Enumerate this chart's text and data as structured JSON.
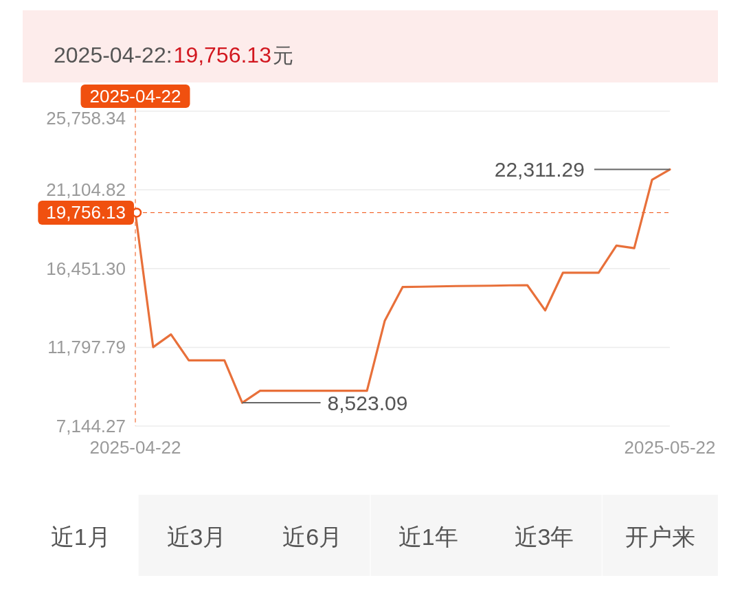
{
  "chart_data": {
    "type": "line",
    "title": "2025-04-22:",
    "subtitle": "19,756.13",
    "x": [
      "2025-04-22",
      "2025-04-23",
      "2025-04-24",
      "2025-04-25",
      "2025-04-26",
      "2025-04-27",
      "2025-04-28",
      "2025-04-29",
      "2025-04-30",
      "2025-05-01",
      "2025-05-02",
      "2025-05-03",
      "2025-05-04",
      "2025-05-05",
      "2025-05-06",
      "2025-05-07",
      "2025-05-08",
      "2025-05-09",
      "2025-05-10",
      "2025-05-11",
      "2025-05-12",
      "2025-05-13",
      "2025-05-14",
      "2025-05-15",
      "2025-05-16",
      "2025-05-17",
      "2025-05-18",
      "2025-05-19",
      "2025-05-20",
      "2025-05-21",
      "2025-05-22"
    ],
    "series": [
      {
        "color": "#e8703a",
        "values": [
          19756.13,
          11810,
          12560,
          11030,
          11030,
          11030,
          8523.09,
          9230,
          9230,
          9230,
          9230,
          9230,
          9230,
          9230,
          13370,
          15360,
          15380,
          15400,
          15420,
          15430,
          15440,
          15460,
          15470,
          13980,
          16210,
          16210,
          16210,
          17810,
          17660,
          21700,
          22311.29
        ]
      }
    ],
    "xlim": [
      "2025-04-22",
      "2025-05-22"
    ],
    "xticks": [
      {
        "value": "2025-04-22",
        "label": "2025-04-22"
      },
      {
        "value": "2025-05-22",
        "label": "2025-05-22"
      }
    ],
    "ylim": [
      7144.27,
      25758.34
    ],
    "yticks": [
      {
        "value": 7144.27,
        "label": "7,144.27"
      },
      {
        "value": 11797.79,
        "label": "11,797.79"
      },
      {
        "value": 16451.3,
        "label": "16,451.30"
      },
      {
        "value": 21104.82,
        "label": "21,104.82"
      },
      {
        "value": 25758.34,
        "label": "25,758.34"
      }
    ],
    "grid": "y",
    "ref_lines": [
      {
        "axis": "x",
        "value": "2025-04-22",
        "label": "2025-04-22",
        "color": "#f0500f",
        "line_style": "dashed"
      },
      {
        "axis": "y",
        "value": 19756.13,
        "label": "19,756.13",
        "color": "#f0500f",
        "line_style": "dashed"
      }
    ],
    "annotations": [
      {
        "text": "8,523.09",
        "x": "2025-04-28",
        "y": 8523.09
      },
      {
        "text": "22,311.29",
        "x": "2025-05-22",
        "y": 22311.29
      },
      "元",
      "近1月",
      "近3月",
      "近6月",
      "近1年",
      "近3年",
      "开户来"
    ]
  }
}
